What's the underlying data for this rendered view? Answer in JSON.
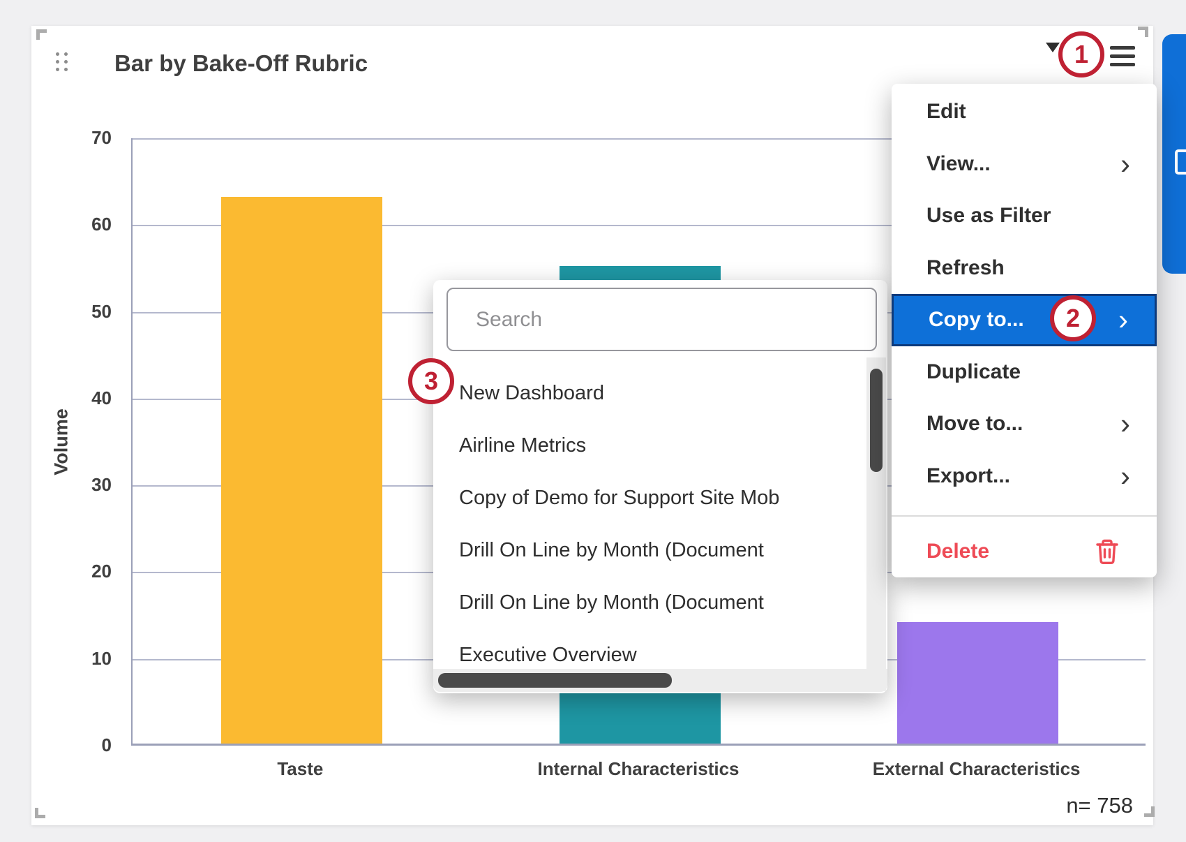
{
  "widget": {
    "title": "Bar by Bake-Off Rubric",
    "sample_label": "n= 758"
  },
  "chart_data": {
    "type": "bar",
    "title": "Bar by Bake-Off Rubric",
    "categories": [
      "Taste",
      "Internal Characteristics",
      "External Characteristics"
    ],
    "values": [
      63,
      55,
      14
    ],
    "bar_colors": [
      "#FBBA31",
      "#1E96A3",
      "#9C77EC"
    ],
    "xlabel": "",
    "ylabel": "Volume",
    "ylim": [
      0,
      70
    ],
    "yticks": [
      0,
      10,
      20,
      30,
      40,
      50,
      60,
      70
    ],
    "grid": true,
    "legend": "none",
    "sample_size": "n= 758"
  },
  "context_menu": {
    "items": [
      {
        "label": "Edit",
        "chevron": false,
        "highlighted": false
      },
      {
        "label": "View...",
        "chevron": true,
        "highlighted": false
      },
      {
        "label": "Use as Filter",
        "chevron": false,
        "highlighted": false
      },
      {
        "label": "Refresh",
        "chevron": false,
        "highlighted": false
      },
      {
        "label": "Copy to...",
        "chevron": true,
        "highlighted": true
      },
      {
        "label": "Duplicate",
        "chevron": false,
        "highlighted": false
      },
      {
        "label": "Move to...",
        "chevron": true,
        "highlighted": false
      },
      {
        "label": "Export...",
        "chevron": true,
        "highlighted": false
      }
    ],
    "delete": {
      "label": "Delete"
    }
  },
  "submenu": {
    "search_placeholder": "Search",
    "items": [
      "New Dashboard",
      "Airline Metrics",
      "Copy of Demo for Support Site Mob",
      "Drill On Line by Month (Document",
      "Drill On Line by Month (Document",
      "Executive Overview"
    ]
  },
  "annotations": [
    {
      "label": "1"
    },
    {
      "label": "2"
    },
    {
      "label": "3"
    }
  ],
  "colors": {
    "highlight_blue": "#0E70D8",
    "highlight_border": "#0D3B7D",
    "annotation_red": "#BF2133",
    "delete_red": "#EE4B56",
    "bar_yellow": "#FBBA31",
    "bar_teal": "#1E96A3",
    "bar_purple": "#9C77EC",
    "axis_gray_blue": "#9BA0B8"
  }
}
